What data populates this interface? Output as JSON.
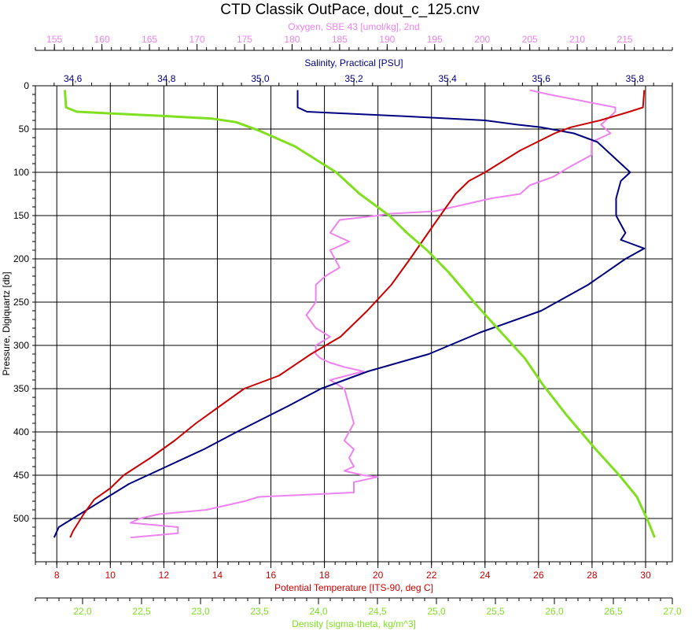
{
  "chart_data": {
    "type": "line",
    "title": "CTD Classik OutPace, dout_c_125.cnv",
    "grid": true,
    "y_axis": {
      "label": "Pressure, Digiquartz [db]",
      "range": [
        0,
        550
      ],
      "inverted": true,
      "ticks": [
        0,
        50,
        100,
        150,
        200,
        250,
        300,
        350,
        400,
        450,
        500
      ],
      "tick_labels": [
        "0",
        "50",
        "100",
        "150",
        "200",
        "250",
        "300",
        "350",
        "400",
        "450",
        "500"
      ]
    },
    "x_axes": [
      {
        "id": "oxygen",
        "position": "top-1",
        "label": "Oxygen, SBE 43 [umol/kg], 2nd",
        "color": "#ee82ee",
        "range": [
          153,
          220
        ],
        "ticks": [
          155,
          160,
          165,
          170,
          175,
          180,
          185,
          190,
          195,
          200,
          205,
          210,
          215
        ],
        "tick_labels": [
          "155",
          "160",
          "165",
          "170",
          "175",
          "180",
          "185",
          "190",
          "195",
          "200",
          "205",
          "210",
          "215"
        ]
      },
      {
        "id": "salinity",
        "position": "top-2",
        "label": "Salinity, Practical [PSU]",
        "color": "#000080",
        "range": [
          34.52,
          35.88
        ],
        "ticks": [
          34.6,
          34.8,
          35.0,
          35.2,
          35.4,
          35.6,
          35.8
        ],
        "tick_labels": [
          "34,6",
          "34,8",
          "35,0",
          "35,2",
          "35,4",
          "35,6",
          "35,8"
        ]
      },
      {
        "id": "temperature",
        "position": "bottom-1",
        "label": "Potential Temperature [ITS-90, deg C]",
        "color": "#cc0000",
        "range": [
          7.2,
          31.0
        ],
        "ticks": [
          8,
          10,
          12,
          14,
          16,
          18,
          20,
          22,
          24,
          26,
          28,
          30
        ],
        "tick_labels": [
          "8",
          "10",
          "12",
          "14",
          "16",
          "18",
          "20",
          "22",
          "24",
          "26",
          "28",
          "30"
        ]
      },
      {
        "id": "density",
        "position": "bottom-2",
        "label": "Density [sigma-theta, kg/m^3]",
        "color": "#80e020",
        "range": [
          21.6,
          27.0
        ],
        "ticks": [
          22.0,
          22.5,
          23.0,
          23.5,
          24.0,
          24.5,
          25.0,
          25.5,
          26.0,
          26.5,
          27.0
        ],
        "tick_labels": [
          "22,0",
          "22,5",
          "23,0",
          "23,5",
          "24,0",
          "24,5",
          "25,0",
          "25,5",
          "26,0",
          "26,5",
          "27,0"
        ]
      }
    ],
    "series": [
      {
        "name": "Oxygen, SBE 43 [umol/kg], 2nd",
        "axis": "oxygen",
        "color": "#ee82ee",
        "x": [
          205,
          207,
          214,
          214,
          212.5,
          213.5,
          211.5,
          211.5,
          209,
          207.5,
          205,
          204,
          201,
          199,
          197,
          195,
          190,
          189,
          185,
          184,
          186,
          184,
          185,
          183.5,
          182.5,
          182.5,
          181.5,
          182.5,
          184,
          182.5,
          182.5,
          183,
          184,
          185.5,
          187.5,
          184,
          185.5,
          186,
          186.5,
          185.5,
          186.5,
          186,
          186.5,
          185.5,
          187.5,
          189,
          186.5,
          186.5,
          176.5,
          175,
          171,
          166,
          164,
          163,
          168,
          168,
          163
        ],
        "y": [
          5,
          10,
          25,
          30,
          45,
          55,
          65,
          80,
          95,
          105,
          115,
          125,
          130,
          135,
          140,
          145,
          148,
          150,
          155,
          170,
          180,
          190,
          210,
          220,
          230,
          250,
          265,
          280,
          290,
          300,
          310,
          315,
          320,
          325,
          330,
          340,
          350,
          370,
          390,
          410,
          420,
          430,
          440,
          445,
          450,
          452,
          458,
          470,
          475,
          480,
          490,
          495,
          500,
          505,
          510,
          517,
          522
        ]
      },
      {
        "name": "Salinity, Practical [PSU]",
        "axis": "salinity",
        "color": "#000080",
        "x": [
          35.08,
          35.08,
          35.1,
          35.3,
          35.48,
          35.55,
          35.6,
          35.62,
          35.67,
          35.72,
          35.75,
          35.77,
          35.79,
          35.77,
          35.76,
          35.76,
          35.78,
          35.77,
          35.78,
          35.82,
          35.78,
          35.7,
          35.6,
          35.47,
          35.36,
          35.23,
          35.13,
          35.06,
          34.95,
          34.88,
          34.78,
          34.72,
          34.66,
          34.6,
          34.57,
          34.56
        ],
        "y": [
          5,
          25,
          30,
          35,
          40,
          45,
          48,
          50,
          55,
          65,
          80,
          90,
          100,
          110,
          130,
          150,
          170,
          178,
          180,
          188,
          200,
          230,
          260,
          285,
          310,
          330,
          350,
          370,
          400,
          420,
          445,
          460,
          480,
          500,
          510,
          522
        ]
      },
      {
        "name": "Potential Temperature [ITS-90, deg C]",
        "axis": "temperature",
        "color": "#cc0000",
        "x": [
          29.95,
          29.9,
          29.4,
          28.3,
          27.2,
          26.6,
          25.3,
          24,
          23.4,
          22.9,
          22.1,
          21.2,
          20.5,
          19.6,
          18.6,
          17.5,
          16.3,
          15,
          14.1,
          13.2,
          12.4,
          11.5,
          10.5,
          10,
          9.4,
          9,
          8.6,
          8.5
        ],
        "y": [
          5,
          25,
          30,
          40,
          48,
          55,
          75,
          100,
          110,
          125,
          160,
          200,
          230,
          260,
          290,
          310,
          335,
          350,
          370,
          390,
          410,
          430,
          450,
          465,
          478,
          495,
          515,
          522
        ]
      },
      {
        "name": "Density [sigma-theta, kg/m^3]",
        "axis": "density",
        "color": "#80e020",
        "x": [
          21.85,
          21.86,
          21.95,
          22.7,
          23.1,
          23.3,
          23.5,
          23.8,
          24.15,
          24.35,
          24.6,
          24.75,
          24.92,
          25.1,
          25.35,
          25.55,
          25.75,
          25.9,
          26.1,
          26.35,
          26.55,
          26.7,
          26.8,
          26.85
        ],
        "y": [
          5,
          25,
          30,
          35,
          38,
          42,
          52,
          70,
          100,
          125,
          150,
          170,
          190,
          215,
          255,
          285,
          315,
          345,
          380,
          420,
          450,
          475,
          505,
          522
        ]
      }
    ]
  }
}
